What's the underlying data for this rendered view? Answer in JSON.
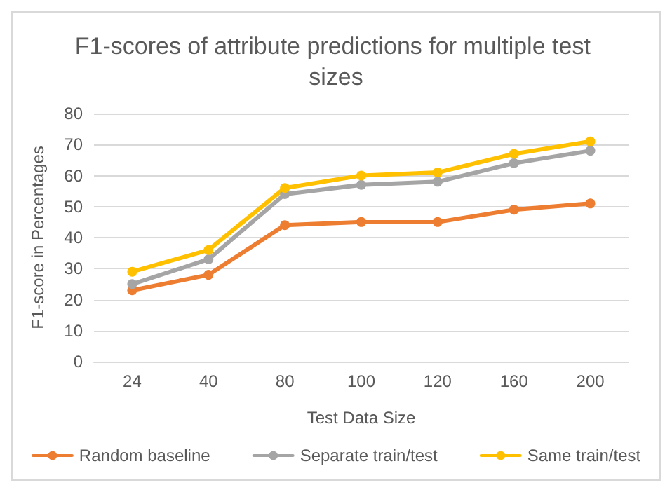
{
  "chart_data": {
    "type": "line",
    "title": "F1-scores of attribute predictions for multiple test sizes",
    "xlabel": "Test Data Size",
    "ylabel": "F1-score in Percentages",
    "categories": [
      "24",
      "40",
      "80",
      "100",
      "120",
      "160",
      "200"
    ],
    "series": [
      {
        "name": "Random baseline",
        "color": "#ed7d31",
        "values": [
          23,
          28,
          44,
          45,
          45,
          49,
          51
        ]
      },
      {
        "name": "Separate train/test",
        "color": "#a5a5a5",
        "values": [
          25,
          33,
          54,
          57,
          58,
          64,
          68
        ]
      },
      {
        "name": "Same train/test",
        "color": "#ffc000",
        "values": [
          29,
          36,
          56,
          60,
          61,
          67,
          71
        ]
      }
    ],
    "ylim": [
      0,
      80
    ],
    "yticks": [
      0,
      10,
      20,
      30,
      40,
      50,
      60,
      70,
      80
    ],
    "grid": "y",
    "legend": "bottom",
    "marker": "circle",
    "line_style": "solid"
  }
}
